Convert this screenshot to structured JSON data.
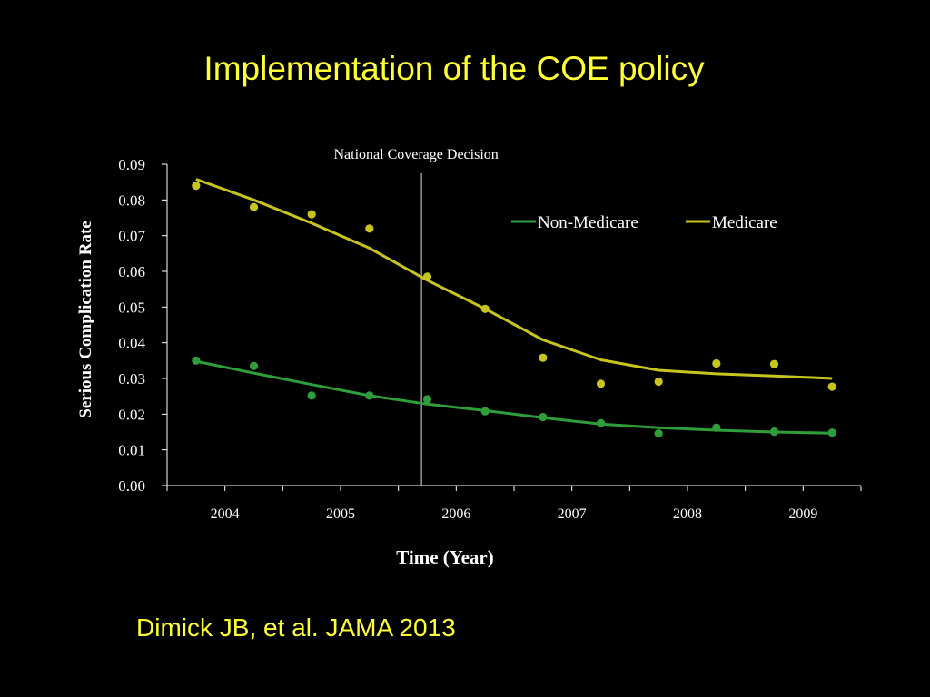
{
  "slide": {
    "title": "Implementation of the COE policy",
    "citation": "Dimick JB, et al. JAMA 2013"
  },
  "colors": {
    "background": "#000000",
    "title": "#ffff33",
    "medicare": "#c8c41e",
    "non_medicare": "#2e9e3a",
    "axis": "#ffffff"
  },
  "chart_data": {
    "type": "line",
    "title": "",
    "xlabel": "Time (Year)",
    "ylabel": "Serious Complication Rate",
    "ylim": [
      0,
      0.09
    ],
    "y_ticks": [
      "0.00",
      "0.01",
      "0.02",
      "0.03",
      "0.04",
      "0.05",
      "0.06",
      "0.07",
      "0.08",
      "0.09"
    ],
    "x_tick_labels": [
      "2004",
      "2005",
      "2006",
      "2007",
      "2008",
      "2009"
    ],
    "x_points": [
      2003.75,
      2004.25,
      2004.75,
      2005.25,
      2005.75,
      2006.25,
      2006.75,
      2007.25,
      2007.75,
      2008.25,
      2008.75,
      2009.25
    ],
    "grid": false,
    "legend_position": "top-right",
    "annotation": {
      "label": "National Coverage Decision",
      "x": 2005.7
    },
    "series": [
      {
        "name": "Non-Medicare",
        "color_key": "non_medicare",
        "points": [
          0.035,
          0.0335,
          0.0252,
          0.0252,
          0.0242,
          0.0208,
          0.0192,
          0.0175,
          0.0146,
          0.0162,
          0.0151,
          0.0148
        ],
        "trend": [
          0.0348,
          0.0315,
          0.0283,
          0.0252,
          0.0228,
          0.021,
          0.019,
          0.0172,
          0.0162,
          0.0155,
          0.015,
          0.0147
        ]
      },
      {
        "name": "Medicare",
        "color_key": "medicare",
        "points": [
          0.084,
          0.078,
          0.076,
          0.072,
          0.0585,
          0.0495,
          0.0358,
          0.0285,
          0.0291,
          0.0342,
          0.034,
          0.0277
        ],
        "trend": [
          0.0858,
          0.08,
          0.0735,
          0.0665,
          0.0575,
          0.0495,
          0.0408,
          0.0352,
          0.0323,
          0.0313,
          0.0307,
          0.03
        ]
      }
    ]
  }
}
